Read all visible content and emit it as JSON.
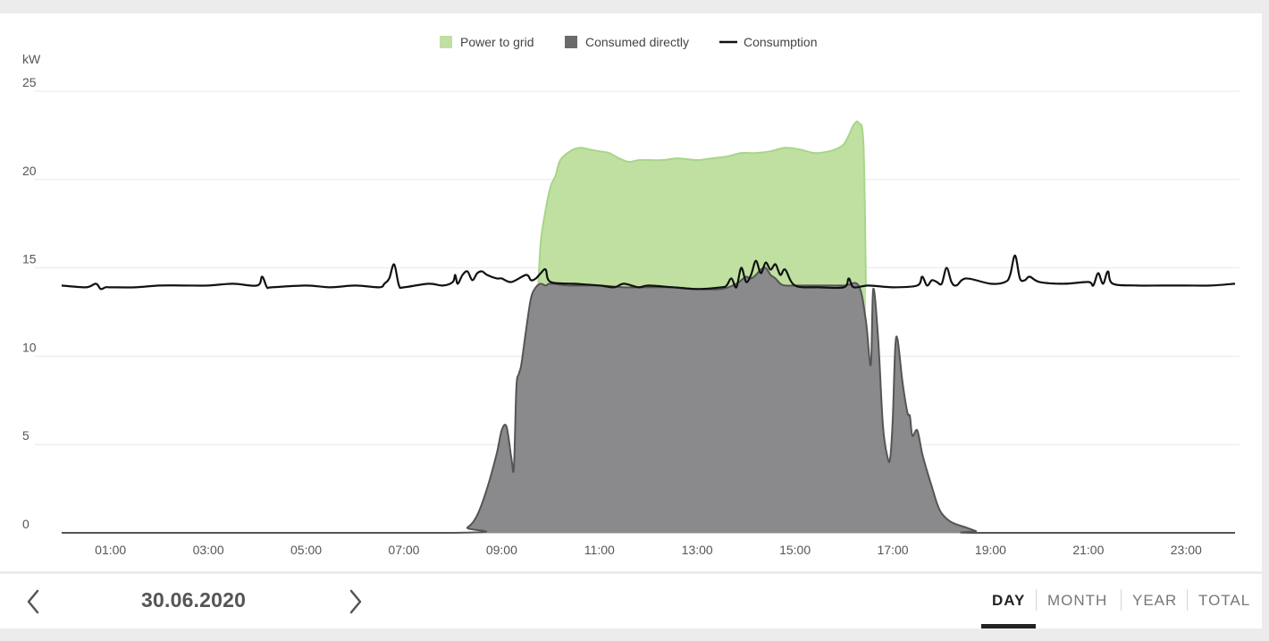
{
  "colors": {
    "power_to_grid": "#bfe0a0",
    "power_to_grid_line": "#a9d58a",
    "consumed_directly": "#8a8a8c",
    "consumed_directly_line": "#555555",
    "consumption_line": "#111111",
    "grid": "#e8e8e8",
    "active_tab": "#222222"
  },
  "legend": {
    "power_to_grid": "Power to grid",
    "consumed_directly": "Consumed directly",
    "consumption": "Consumption"
  },
  "footer": {
    "date": "30.06.2020",
    "prev_icon": "chevron-left-icon",
    "next_icon": "chevron-right-icon",
    "tabs": [
      {
        "label": "DAY",
        "active": true
      },
      {
        "label": "MONTH",
        "active": false
      },
      {
        "label": "YEAR",
        "active": false
      },
      {
        "label": "TOTAL",
        "active": false
      }
    ]
  },
  "chart_data": {
    "type": "area",
    "title": "",
    "xlabel": "",
    "ylabel": "kW",
    "xlim": [
      0,
      24
    ],
    "ylim": [
      0,
      25
    ],
    "x_ticks": [
      "01:00",
      "03:00",
      "05:00",
      "07:00",
      "09:00",
      "11:00",
      "13:00",
      "15:00",
      "17:00",
      "19:00",
      "21:00",
      "23:00"
    ],
    "y_ticks": [
      "0",
      "5",
      "10",
      "15",
      "20",
      "25"
    ],
    "grid": true,
    "legend_position": "top-center",
    "series": [
      {
        "name": "Power to grid",
        "style": "area",
        "x": [
          9.75,
          9.8,
          9.9,
          10.0,
          10.1,
          10.2,
          10.4,
          10.6,
          10.8,
          11.0,
          11.2,
          11.4,
          11.6,
          11.8,
          12.0,
          12.3,
          12.6,
          13.0,
          13.3,
          13.6,
          13.9,
          14.2,
          14.5,
          14.8,
          15.1,
          15.4,
          15.7,
          15.9,
          16.0,
          16.1,
          16.2,
          16.3,
          16.4,
          16.45
        ],
        "values": [
          14.0,
          16.5,
          18.3,
          19.6,
          20.2,
          21.1,
          21.6,
          21.8,
          21.7,
          21.6,
          21.5,
          21.2,
          21.0,
          21.1,
          21.1,
          21.1,
          21.2,
          21.1,
          21.2,
          21.3,
          21.5,
          21.5,
          21.6,
          21.8,
          21.7,
          21.5,
          21.6,
          21.8,
          22.0,
          22.5,
          23.1,
          23.2,
          22.0,
          14.0
        ]
      },
      {
        "name": "Consumed directly",
        "style": "area",
        "x": [
          0.0,
          8.0,
          8.3,
          8.5,
          8.7,
          8.9,
          9.0,
          9.1,
          9.2,
          9.25,
          9.3,
          9.35,
          9.4,
          9.5,
          9.6,
          9.7,
          9.8,
          9.9,
          10.0,
          10.4,
          11.0,
          11.5,
          12.0,
          12.5,
          13.0,
          13.5,
          13.8,
          13.9,
          14.0,
          14.1,
          14.2,
          14.3,
          14.4,
          14.5,
          14.6,
          14.7,
          14.8,
          15.0,
          15.5,
          16.0,
          16.3,
          16.45,
          16.55,
          16.6,
          16.7,
          16.8,
          16.9,
          16.95,
          17.0,
          17.05,
          17.1,
          17.2,
          17.3,
          17.35,
          17.4,
          17.5,
          17.6,
          17.7,
          17.8,
          17.9,
          18.0,
          18.2,
          18.5,
          18.7,
          18.8,
          24.0
        ],
        "values": [
          0.0,
          0.0,
          0.3,
          1.0,
          2.5,
          4.5,
          5.8,
          6.0,
          4.2,
          3.7,
          8.2,
          9.0,
          9.5,
          11.5,
          13.3,
          13.9,
          14.1,
          14.0,
          14.1,
          14.0,
          14.0,
          13.9,
          13.9,
          13.9,
          13.8,
          13.8,
          14.1,
          14.3,
          14.5,
          14.4,
          14.6,
          14.9,
          15.0,
          14.6,
          14.4,
          14.1,
          14.0,
          14.0,
          14.0,
          14.0,
          14.0,
          12.0,
          9.5,
          13.8,
          11.0,
          6.0,
          4.2,
          4.3,
          6.5,
          10.5,
          10.9,
          8.5,
          6.8,
          6.6,
          5.5,
          5.8,
          4.5,
          3.5,
          2.6,
          1.7,
          1.1,
          0.6,
          0.3,
          0.1,
          0.0,
          0.0
        ]
      },
      {
        "name": "Consumption",
        "style": "line",
        "x": [
          0.0,
          0.5,
          0.7,
          0.8,
          0.9,
          1.0,
          1.5,
          2.0,
          2.5,
          3.0,
          3.5,
          4.0,
          4.1,
          4.2,
          4.3,
          5.0,
          5.5,
          6.0,
          6.5,
          6.6,
          6.7,
          6.8,
          6.9,
          7.0,
          7.5,
          7.8,
          8.0,
          8.05,
          8.1,
          8.2,
          8.3,
          8.4,
          8.5,
          8.6,
          8.7,
          8.9,
          9.0,
          9.2,
          9.5,
          9.6,
          9.7,
          9.8,
          9.9,
          10.0,
          10.5,
          11.0,
          11.3,
          11.5,
          11.8,
          12.0,
          12.5,
          13.0,
          13.5,
          13.6,
          13.7,
          13.8,
          13.9,
          14.0,
          14.1,
          14.2,
          14.3,
          14.4,
          14.5,
          14.6,
          14.7,
          14.8,
          15.0,
          15.5,
          16.0,
          16.1,
          16.2,
          16.5,
          17.0,
          17.5,
          17.6,
          17.7,
          17.8,
          17.9,
          18.0,
          18.1,
          18.2,
          18.3,
          18.5,
          19.0,
          19.3,
          19.4,
          19.5,
          19.6,
          19.7,
          19.8,
          20.0,
          20.5,
          21.0,
          21.1,
          21.2,
          21.3,
          21.4,
          21.5,
          22.0,
          22.5,
          23.0,
          23.5,
          24.0
        ],
        "values": [
          14.0,
          13.9,
          14.1,
          13.8,
          13.9,
          13.9,
          13.9,
          14.0,
          14.0,
          14.0,
          14.1,
          14.0,
          14.5,
          13.9,
          13.9,
          14.0,
          13.9,
          14.0,
          13.9,
          14.1,
          14.4,
          15.2,
          14.0,
          13.9,
          14.1,
          14.0,
          14.2,
          14.6,
          14.1,
          14.6,
          14.8,
          14.3,
          14.7,
          14.8,
          14.6,
          14.4,
          14.4,
          14.2,
          14.6,
          14.3,
          14.4,
          14.7,
          14.9,
          14.2,
          14.1,
          14.0,
          13.9,
          14.1,
          13.9,
          14.0,
          13.9,
          13.8,
          13.9,
          14.0,
          14.4,
          13.9,
          15.0,
          14.2,
          14.6,
          15.4,
          14.7,
          15.3,
          14.9,
          15.2,
          14.6,
          14.9,
          14.0,
          13.9,
          13.9,
          14.4,
          13.9,
          14.0,
          13.9,
          14.0,
          14.5,
          14.0,
          14.3,
          14.2,
          14.1,
          15.0,
          14.2,
          14.0,
          14.4,
          14.1,
          14.2,
          14.6,
          15.7,
          14.4,
          14.3,
          14.5,
          14.2,
          14.1,
          14.2,
          14.0,
          14.7,
          14.1,
          14.8,
          14.1,
          14.0,
          14.0,
          14.0,
          14.0,
          14.1
        ]
      }
    ]
  }
}
